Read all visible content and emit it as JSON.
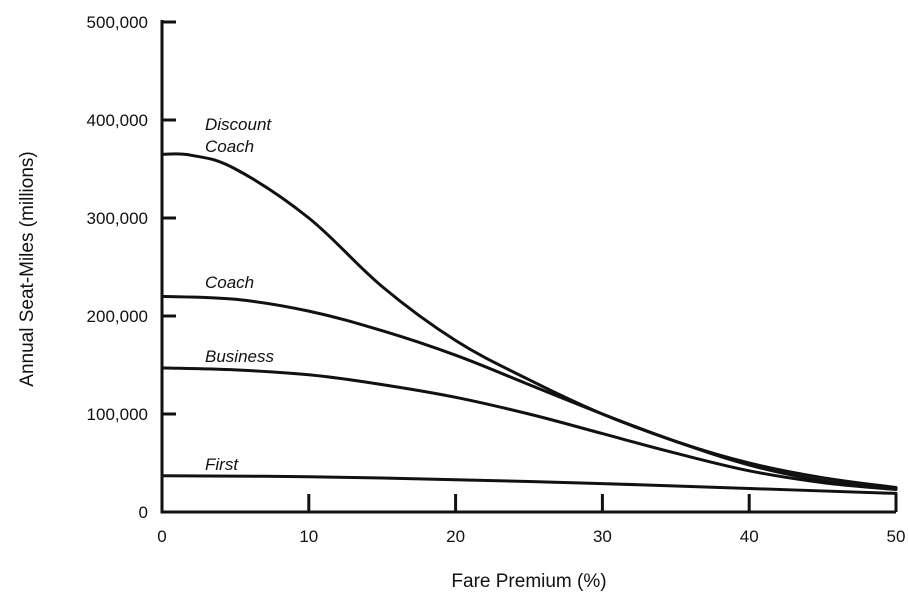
{
  "chart_data": {
    "type": "line",
    "title": "",
    "xlabel": "Fare Premium (%)",
    "ylabel": "Annual Seat-Miles (millions)",
    "xlim": [
      0,
      50
    ],
    "ylim": [
      0,
      500000
    ],
    "x_ticks": [
      0,
      10,
      20,
      30,
      40,
      50
    ],
    "x_tick_labels": [
      "0",
      "10",
      "20",
      "30",
      "40",
      "50"
    ],
    "y_ticks": [
      0,
      100000,
      200000,
      300000,
      400000,
      500000
    ],
    "y_tick_labels": [
      "0",
      "100,000",
      "200,000",
      "300,000",
      "400,000",
      "500,000"
    ],
    "grid": false,
    "legend": "none",
    "series": [
      {
        "name": "Discount Coach",
        "label_lines": [
          "Discount",
          "Coach"
        ],
        "x": [
          0,
          2,
          5,
          10,
          15,
          20,
          25,
          30,
          35,
          40,
          45,
          50
        ],
        "values": [
          365000,
          364000,
          350000,
          300000,
          230000,
          175000,
          135000,
          100000,
          72000,
          50000,
          35000,
          25000
        ]
      },
      {
        "name": "Coach",
        "label_lines": [
          "Coach"
        ],
        "x": [
          0,
          5,
          10,
          15,
          20,
          25,
          30,
          35,
          40,
          45,
          50
        ],
        "values": [
          220000,
          217000,
          205000,
          185000,
          160000,
          130000,
          100000,
          72000,
          48000,
          32000,
          24000
        ]
      },
      {
        "name": "Business",
        "label_lines": [
          "Business"
        ],
        "x": [
          0,
          5,
          10,
          15,
          20,
          25,
          30,
          35,
          40,
          45,
          50
        ],
        "values": [
          147000,
          145000,
          140000,
          130000,
          117000,
          100000,
          80000,
          60000,
          42000,
          30000,
          23000
        ]
      },
      {
        "name": "First",
        "label_lines": [
          "First"
        ],
        "x": [
          0,
          10,
          20,
          30,
          40,
          50
        ],
        "values": [
          37000,
          36000,
          33000,
          29000,
          24000,
          19000
        ]
      }
    ]
  }
}
